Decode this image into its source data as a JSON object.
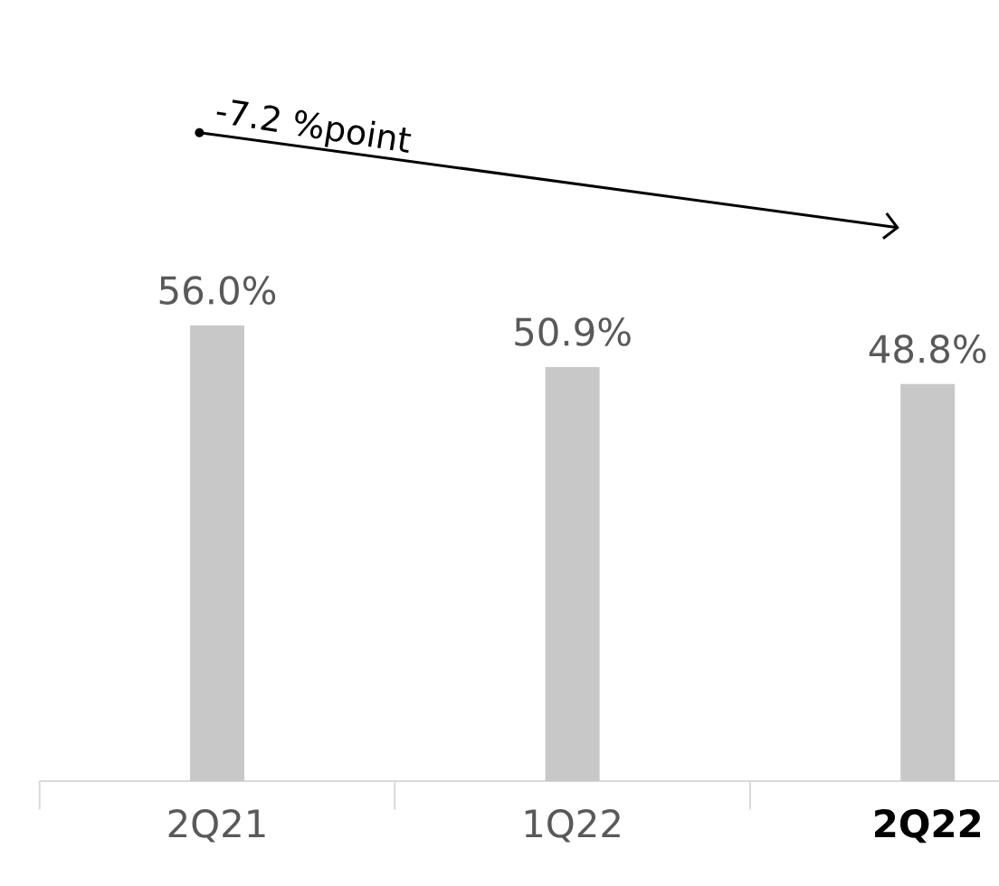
{
  "chart_data": {
    "type": "bar",
    "categories": [
      "2Q21",
      "1Q22",
      "2Q22"
    ],
    "values": [
      56.0,
      50.9,
      48.8
    ],
    "value_labels": [
      "56.0%",
      "50.9%",
      "48.8%"
    ],
    "color": "#c8c8c8",
    "annotations": [
      {
        "text": "-7.2 %point"
      }
    ]
  }
}
